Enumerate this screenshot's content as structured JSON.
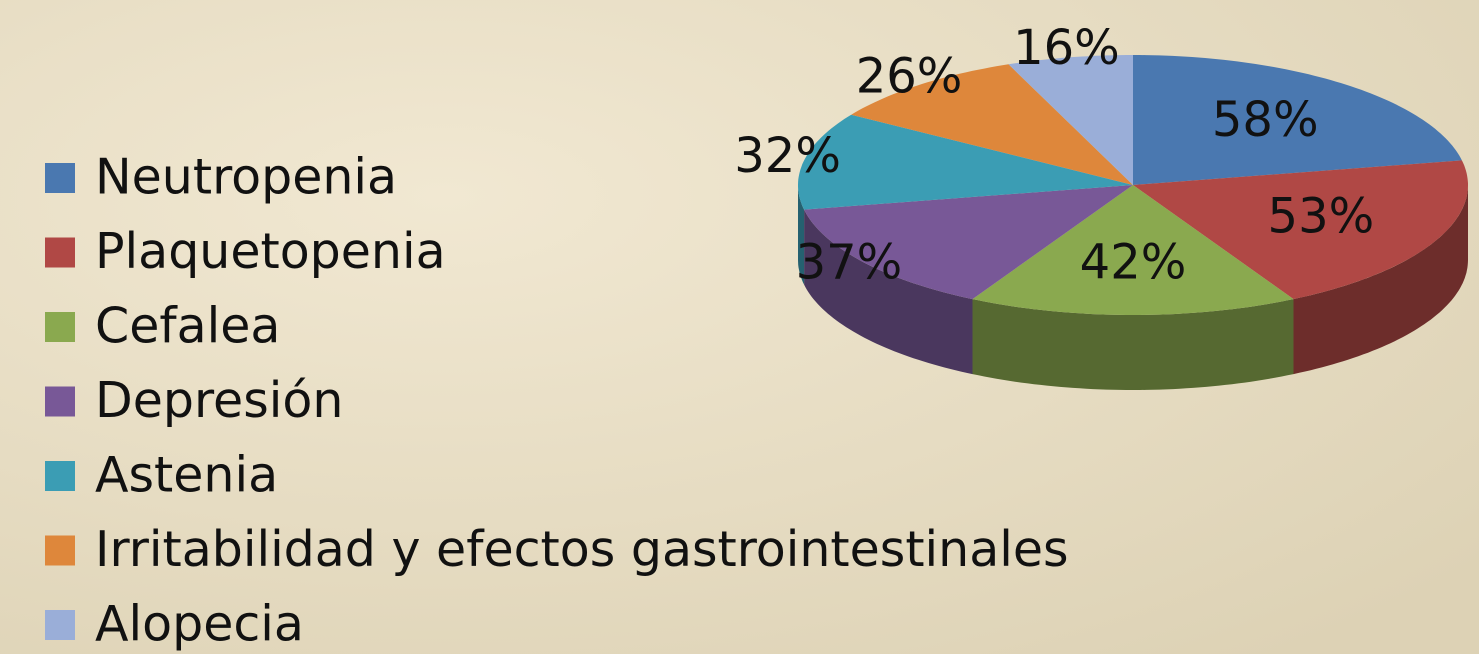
{
  "chart_data": {
    "type": "pie3d",
    "categories": [
      "Neutropenia",
      "Plaquetopenia",
      "Cefalea",
      "Depresión",
      "Astenia",
      "Irritabilidad y efectos gastrointestinales",
      "Alopecia"
    ],
    "values": [
      58,
      53,
      42,
      37,
      32,
      26,
      16
    ],
    "value_labels": [
      "58%",
      "53%",
      "42%",
      "37%",
      "32%",
      "26%",
      "16%"
    ],
    "colors": [
      "#4a78b0",
      "#b04845",
      "#8aa94f",
      "#785897",
      "#3b9db4",
      "#de873b",
      "#9aaed8"
    ],
    "legend": "left"
  }
}
